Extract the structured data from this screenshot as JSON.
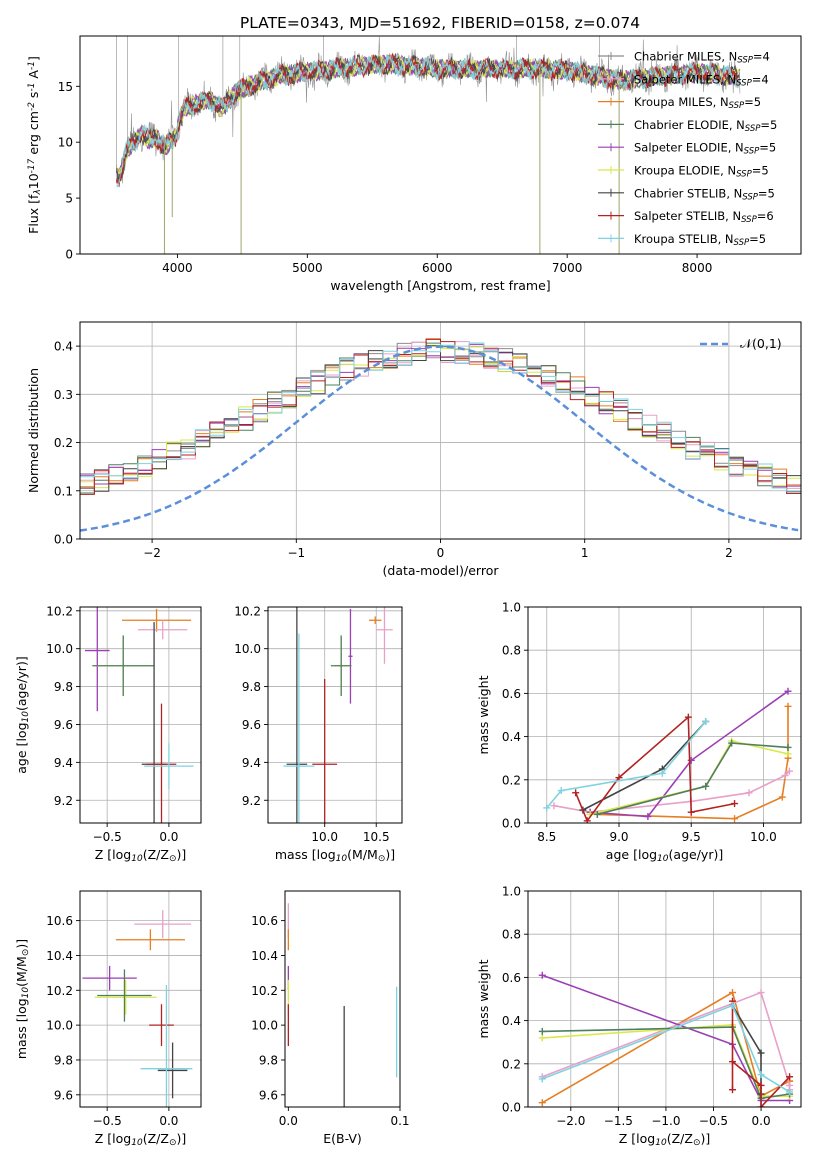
{
  "figure": {
    "title": "PLATE=0343, MJD=51692, FIBERID=0158, z=0.074"
  },
  "palette": {
    "chabrier_miles": "#8c8c8c",
    "salpeter_miles": "#e8a0c8",
    "kroupa_miles": "#e67e22",
    "chabrier_elodie": "#4f7f5f",
    "salpeter_elodie": "#9b3fb5",
    "kroupa_elodie": "#d9e84a",
    "chabrier_stelib": "#444444",
    "salpeter_stelib": "#b22222",
    "kroupa_stelib": "#7fd3e0",
    "gaussian": "#5b8fd9"
  },
  "chart_data": [
    {
      "id": "spectrum",
      "type": "line",
      "xlabel": "wavelength [Angstrom, rest frame]",
      "ylabel": "Flux [f$_\\lambda$10$^{-17}$ erg cm$^{-2}$ s$^{-1}$ A$^{-1}$]",
      "xlim": [
        3250,
        8800
      ],
      "ylim": [
        0,
        19.5
      ],
      "xticks": [
        "4000",
        "5000",
        "6000",
        "7000",
        "8000"
      ],
      "yticks": [
        "0",
        "5",
        "10",
        "15"
      ],
      "legend_position": "right",
      "grid": false,
      "legend": [
        {
          "base": "Chabrier MILES, N",
          "sub": "SSP",
          "tail": "=4",
          "color_key": "chabrier_miles"
        },
        {
          "base": "Salpeter MILES, N",
          "sub": "SSP",
          "tail": "=4",
          "color_key": "salpeter_miles"
        },
        {
          "base": "Kroupa MILES, N",
          "sub": "SSP",
          "tail": "=5",
          "color_key": "kroupa_miles"
        },
        {
          "base": "Chabrier ELODIE, N",
          "sub": "SSP",
          "tail": "=5",
          "color_key": "chabrier_elodie"
        },
        {
          "base": "Salpeter ELODIE, N",
          "sub": "SSP",
          "tail": "=5",
          "color_key": "salpeter_elodie"
        },
        {
          "base": "Kroupa ELODIE, N",
          "sub": "SSP",
          "tail": "=5",
          "color_key": "kroupa_elodie"
        },
        {
          "base": "Chabrier STELIB, N",
          "sub": "SSP",
          "tail": "=5",
          "color_key": "chabrier_stelib"
        },
        {
          "base": "Salpeter STELIB, N",
          "sub": "SSP",
          "tail": "=6",
          "color_key": "salpeter_stelib"
        },
        {
          "base": "Kroupa STELIB, N",
          "sub": "SSP",
          "tail": "=5",
          "color_key": "kroupa_stelib"
        }
      ],
      "continuum_anchor_points": {
        "x": [
          3550,
          3650,
          3750,
          3850,
          3950,
          4050,
          4150,
          4250,
          4350,
          4450,
          4550,
          4650,
          4800,
          5000,
          5200,
          5400,
          5600,
          5800,
          6000,
          6200,
          6400,
          6600,
          6800,
          7000,
          7200,
          7400,
          7600,
          7800,
          8000,
          8200,
          8300
        ],
        "y": [
          7.5,
          10.5,
          11.0,
          10.5,
          10.0,
          13.0,
          13.5,
          13.8,
          13.0,
          14.5,
          15.0,
          15.5,
          16.0,
          16.3,
          16.5,
          16.8,
          17.0,
          16.8,
          16.6,
          16.5,
          16.6,
          16.5,
          16.6,
          16.4,
          16.0,
          15.5,
          15.8,
          16.0,
          16.2,
          16.0,
          15.9
        ]
      },
      "absorption_dips": [
        {
          "x": 3900,
          "y": 0.0
        },
        {
          "x": 3960,
          "y": 3.3
        },
        {
          "x": 4490,
          "y": 0.0
        },
        {
          "x": 6790,
          "y": 0.0
        },
        {
          "x": 7400,
          "y": 0.0
        }
      ]
    },
    {
      "id": "residual_histogram",
      "type": "bar",
      "xlabel": "(data-model)/error",
      "ylabel": "Normed distribution",
      "xlim": [
        -2.5,
        2.5
      ],
      "ylim": [
        0,
        0.45
      ],
      "xticks": [
        "−2",
        "−1",
        "0",
        "1",
        "2"
      ],
      "yticks": [
        "0.0",
        "0.1",
        "0.2",
        "0.3",
        "0.4"
      ],
      "grid": true,
      "legend_position": "upper right",
      "legend": [
        {
          "text": "$\\mathcal{N}(0,1)$",
          "color_key": "gaussian"
        }
      ],
      "bin_width": 0.1
    },
    {
      "id": "age_vs_Z",
      "type": "scatter",
      "xlabel": "Z [log$_{10}$(Z/Z$_\\odot$)]",
      "ylabel": "age  [log$_{10}$(age/yr)]",
      "xlim": [
        -0.72,
        0.26
      ],
      "ylim": [
        9.08,
        10.22
      ],
      "xticks": [
        "−0.5",
        "0.0"
      ],
      "yticks": [
        "9.2",
        "9.4",
        "9.6",
        "9.8",
        "10.0",
        "10.2"
      ],
      "grid": true,
      "points": [
        {
          "x": -0.1,
          "y": 10.15,
          "xerr": 0.28,
          "yerr": 0.06,
          "color_key": "kroupa_miles"
        },
        {
          "x": -0.05,
          "y": 10.1,
          "xerr": 0.2,
          "yerr": 0.05,
          "color_key": "salpeter_miles"
        },
        {
          "x": -0.58,
          "y": 9.99,
          "xerr": 0.1,
          "yerr": 0.32,
          "color_key": "salpeter_elodie"
        },
        {
          "x": -0.37,
          "y": 9.91,
          "xerr": 0.25,
          "yerr": 0.16,
          "color_key": "kroupa_elodie"
        },
        {
          "x": -0.37,
          "y": 9.91,
          "xerr": 0.25,
          "yerr": 0.16,
          "color_key": "chabrier_elodie"
        },
        {
          "x": -0.12,
          "y": 9.39,
          "xerr": 0.1,
          "yerr": 0.75,
          "color_key": "chabrier_stelib"
        },
        {
          "x": -0.06,
          "y": 9.39,
          "xerr": 0.12,
          "yerr": 0.32,
          "color_key": "salpeter_stelib"
        },
        {
          "x": 0.0,
          "y": 9.38,
          "xerr": 0.2,
          "yerr": 0.12,
          "color_key": "kroupa_stelib"
        }
      ]
    },
    {
      "id": "age_vs_mass",
      "type": "scatter",
      "xlabel": "mass [log$_{10}$(M/M$_\\odot$)]",
      "ylabel": "",
      "xlim": [
        9.45,
        10.75
      ],
      "ylim": [
        9.08,
        10.22
      ],
      "xticks": [
        "10.0",
        "10.5"
      ],
      "yticks": [
        "9.2",
        "9.4",
        "9.6",
        "9.8",
        "10.0",
        "10.2"
      ],
      "grid": true,
      "points": [
        {
          "x": 10.49,
          "y": 10.15,
          "xerr": 0.06,
          "yerr": 0.02,
          "color_key": "kroupa_miles"
        },
        {
          "x": 10.58,
          "y": 10.1,
          "xerr": 0.08,
          "yerr": 0.18,
          "color_key": "salpeter_miles"
        },
        {
          "x": 10.25,
          "y": 9.96,
          "xerr": 0.02,
          "yerr": 0.25,
          "color_key": "salpeter_elodie"
        },
        {
          "x": 10.16,
          "y": 9.91,
          "xerr": 0.07,
          "yerr": 0.15,
          "color_key": "kroupa_elodie"
        },
        {
          "x": 10.16,
          "y": 9.91,
          "xerr": 0.1,
          "yerr": 0.16,
          "color_key": "chabrier_elodie"
        },
        {
          "x": 9.73,
          "y": 9.39,
          "xerr": 0.1,
          "yerr": 0.83,
          "color_key": "chabrier_stelib"
        },
        {
          "x": 10.0,
          "y": 9.39,
          "xerr": 0.12,
          "yerr": 0.45,
          "color_key": "salpeter_stelib"
        },
        {
          "x": 9.75,
          "y": 9.38,
          "xerr": 0.15,
          "yerr": 0.7,
          "color_key": "kroupa_stelib"
        }
      ]
    },
    {
      "id": "weight_vs_age",
      "type": "line",
      "xlabel": "age  [log$_{10}$(age/yr)]",
      "ylabel": "mass weight",
      "xlim": [
        8.37,
        10.26
      ],
      "ylim": [
        0,
        1.0
      ],
      "xticks": [
        "8.5",
        "9.0",
        "9.5",
        "10.0"
      ],
      "yticks": [
        "0.0",
        "0.2",
        "0.4",
        "0.6",
        "0.8",
        "1.0"
      ],
      "grid": true,
      "series": [
        {
          "color_key": "kroupa_miles",
          "x": [
            8.85,
            9.8,
            10.13,
            10.17,
            10.17
          ],
          "y": [
            0.04,
            0.02,
            0.12,
            0.3,
            0.54
          ]
        },
        {
          "color_key": "salpeter_miles",
          "x": [
            8.55,
            8.8,
            9.5,
            9.9,
            10.15,
            10.18
          ],
          "y": [
            0.08,
            0.05,
            0.1,
            0.14,
            0.22,
            0.24
          ]
        },
        {
          "color_key": "salpeter_elodie",
          "x": [
            8.8,
            9.2,
            9.5,
            10.17
          ],
          "y": [
            0.05,
            0.03,
            0.29,
            0.61
          ]
        },
        {
          "color_key": "kroupa_elodie",
          "x": [
            8.8,
            9.6,
            9.78,
            10.17
          ],
          "y": [
            0.04,
            0.17,
            0.38,
            0.32
          ]
        },
        {
          "color_key": "chabrier_elodie",
          "x": [
            8.85,
            9.6,
            9.78,
            10.17
          ],
          "y": [
            0.04,
            0.17,
            0.37,
            0.35
          ]
        },
        {
          "color_key": "chabrier_stelib",
          "x": [
            8.75,
            9.3,
            9.6
          ],
          "y": [
            0.06,
            0.25,
            0.47
          ]
        },
        {
          "color_key": "salpeter_stelib",
          "x": [
            8.7,
            8.78,
            9.0,
            9.48,
            9.5,
            9.8
          ],
          "y": [
            0.14,
            0.01,
            0.21,
            0.49,
            0.05,
            0.09
          ]
        },
        {
          "color_key": "kroupa_stelib",
          "x": [
            8.5,
            8.6,
            9.3,
            9.6
          ],
          "y": [
            0.07,
            0.15,
            0.23,
            0.47
          ]
        }
      ]
    },
    {
      "id": "mass_vs_Z",
      "type": "scatter",
      "xlabel": "Z [log$_{10}$(Z/Z$_\\odot$)]",
      "ylabel": "mass [log$_{10}$(M/M$_\\odot$)]",
      "xlim": [
        -0.72,
        0.26
      ],
      "ylim": [
        9.53,
        10.77
      ],
      "xticks": [
        "−0.5",
        "0.0"
      ],
      "yticks": [
        "9.6",
        "9.8",
        "10.0",
        "10.2",
        "10.4",
        "10.6"
      ],
      "grid": true,
      "points": [
        {
          "x": -0.15,
          "y": 10.49,
          "xerr": 0.28,
          "yerr": 0.06,
          "color_key": "kroupa_miles"
        },
        {
          "x": -0.05,
          "y": 10.58,
          "xerr": 0.23,
          "yerr": 0.08,
          "color_key": "salpeter_miles"
        },
        {
          "x": -0.48,
          "y": 10.27,
          "xerr": 0.22,
          "yerr": 0.07,
          "color_key": "salpeter_elodie"
        },
        {
          "x": -0.35,
          "y": 10.16,
          "xerr": 0.25,
          "yerr": 0.1,
          "color_key": "kroupa_elodie"
        },
        {
          "x": -0.36,
          "y": 10.17,
          "xerr": 0.22,
          "yerr": 0.15,
          "color_key": "chabrier_elodie"
        },
        {
          "x": 0.03,
          "y": 9.74,
          "xerr": 0.12,
          "yerr": 0.16,
          "color_key": "chabrier_stelib"
        },
        {
          "x": -0.06,
          "y": 10.0,
          "xerr": 0.1,
          "yerr": 0.12,
          "color_key": "salpeter_stelib"
        },
        {
          "x": -0.02,
          "y": 9.75,
          "xerr": 0.21,
          "yerr": 0.48,
          "color_key": "kroupa_stelib"
        }
      ]
    },
    {
      "id": "mass_vs_EBV",
      "type": "scatter",
      "xlabel": "E(B-V)",
      "ylabel": "",
      "xlim": [
        -0.003,
        0.1
      ],
      "ylim": [
        9.53,
        10.77
      ],
      "xticks": [
        "0.0",
        "0.1"
      ],
      "yticks": [
        "9.6",
        "9.8",
        "10.0",
        "10.2",
        "10.4",
        "10.6"
      ],
      "grid": false,
      "points": [
        {
          "x": 0.0,
          "y": 10.6,
          "xerr": 0.0,
          "yerr": 0.1,
          "color_key": "salpeter_miles"
        },
        {
          "x": 0.0,
          "y": 10.49,
          "xerr": 0.0,
          "yerr": 0.06,
          "color_key": "kroupa_miles"
        },
        {
          "x": 0.0,
          "y": 10.27,
          "xerr": 0.0,
          "yerr": 0.07,
          "color_key": "salpeter_elodie"
        },
        {
          "x": 0.0,
          "y": 10.16,
          "xerr": 0.0,
          "yerr": 0.1,
          "color_key": "kroupa_elodie"
        },
        {
          "x": 0.0,
          "y": 10.0,
          "xerr": 0.0,
          "yerr": 0.12,
          "color_key": "salpeter_stelib"
        },
        {
          "x": 0.05,
          "y": 9.74,
          "xerr": 0.0,
          "yerr": 0.37,
          "color_key": "chabrier_stelib"
        },
        {
          "x": 0.097,
          "y": 9.96,
          "xerr": 0.0,
          "yerr": 0.26,
          "color_key": "kroupa_stelib"
        }
      ]
    },
    {
      "id": "weight_vs_Z",
      "type": "line",
      "xlabel": "Z [log$_{10}$(Z/Z$_\\odot$)]",
      "ylabel": "mass weight",
      "xlim": [
        -2.45,
        0.42
      ],
      "ylim": [
        0,
        1.0
      ],
      "xticks": [
        "−2.0",
        "−1.5",
        "−1.0",
        "−0.5",
        "0.0"
      ],
      "yticks": [
        "0.0",
        "0.2",
        "0.4",
        "0.6",
        "0.8",
        "1.0"
      ],
      "grid": true,
      "series": [
        {
          "color_key": "kroupa_miles",
          "x": [
            -2.3,
            -0.3,
            0.0,
            0.3,
            0.3
          ],
          "y": [
            0.02,
            0.53,
            0.05,
            0.12,
            0.12
          ]
        },
        {
          "color_key": "salpeter_miles",
          "x": [
            -2.3,
            0.0,
            0.3,
            0.3,
            0.3
          ],
          "y": [
            0.14,
            0.53,
            0.1,
            0.08,
            0.08
          ]
        },
        {
          "color_key": "salpeter_elodie",
          "x": [
            -2.3,
            -0.3,
            0.0,
            0.3
          ],
          "y": [
            0.61,
            0.29,
            0.03,
            0.03
          ]
        },
        {
          "color_key": "kroupa_elodie",
          "x": [
            -2.3,
            -0.3,
            0.0,
            0.3
          ],
          "y": [
            0.32,
            0.38,
            0.05,
            0.05
          ]
        },
        {
          "color_key": "chabrier_elodie",
          "x": [
            -2.3,
            -0.3,
            0.0,
            0.3
          ],
          "y": [
            0.35,
            0.37,
            0.04,
            0.06
          ]
        },
        {
          "color_key": "chabrier_stelib",
          "x": [
            -0.3,
            0.0,
            0.0
          ],
          "y": [
            0.47,
            0.25,
            0.06
          ]
        },
        {
          "color_key": "salpeter_stelib",
          "x": [
            -0.3,
            -0.3,
            -0.3,
            0.0,
            0.0,
            0.3
          ],
          "y": [
            0.49,
            0.08,
            0.21,
            0.1,
            0.0,
            0.14
          ]
        },
        {
          "color_key": "kroupa_stelib",
          "x": [
            -2.3,
            -0.3,
            0.0,
            0.3
          ],
          "y": [
            0.13,
            0.47,
            0.15,
            0.07
          ]
        }
      ]
    }
  ]
}
